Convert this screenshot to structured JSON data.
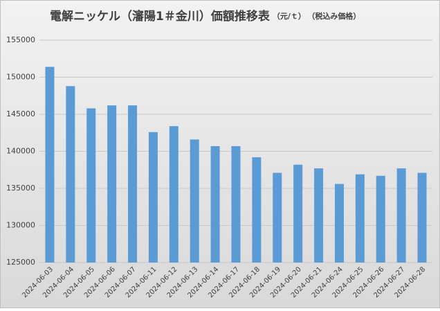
{
  "chart_data": {
    "type": "bar",
    "title": "電解ニッケル（瀋陽1＃金川）価額推移表",
    "unit": "（元/ｔ）",
    "note": "（税込み価格）",
    "categories": [
      "2024-06-03",
      "2024-06-04",
      "2024-06-05",
      "2024-06-06",
      "2024-06-07",
      "2024-06-11",
      "2024-06-12",
      "2024-06-13",
      "2024-06-14",
      "2024-06-17",
      "2024-06-18",
      "2024-06-19",
      "2024-06-20",
      "2024-06-21",
      "2024-06-24",
      "2024-06-25",
      "2024-06-26",
      "2024-06-27",
      "2024-06-28"
    ],
    "values": [
      151400,
      148800,
      145800,
      146200,
      146200,
      142600,
      143400,
      141600,
      140700,
      140700,
      139200,
      137100,
      138200,
      137700,
      135600,
      136900,
      136700,
      137700,
      137100
    ],
    "color": "#5b9bd5",
    "ylim": [
      125000,
      155000
    ],
    "yticks": [
      125000,
      130000,
      135000,
      140000,
      145000,
      150000,
      155000
    ],
    "grid": true
  }
}
